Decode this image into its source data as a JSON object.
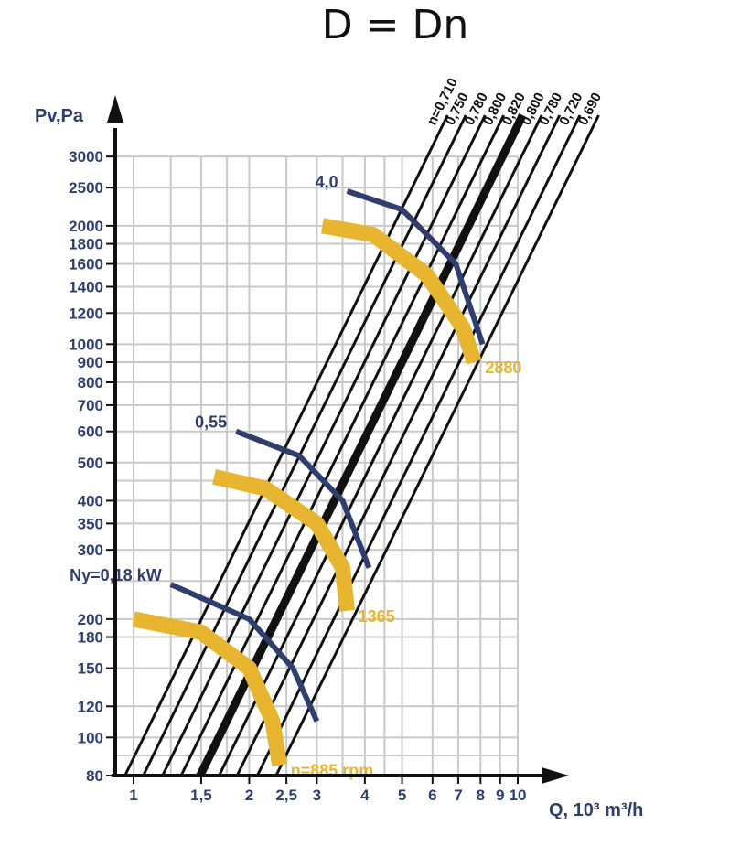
{
  "chart_data": {
    "type": "line",
    "title": "D = Dn",
    "xlabel": "Q, 10³ m³/h",
    "ylabel": "Pv,Pa",
    "x_scale": "log",
    "y_scale": "log",
    "xlim": [
      0.95,
      11
    ],
    "ylim": [
      80,
      4000
    ],
    "x_ticks": [
      {
        "v": 1,
        "label": "1"
      },
      {
        "v": 1.5,
        "label": "1,5"
      },
      {
        "v": 2,
        "label": "2"
      },
      {
        "v": 2.5,
        "label": "2,5"
      },
      {
        "v": 3,
        "label": "3"
      },
      {
        "v": 4,
        "label": "4"
      },
      {
        "v": 5,
        "label": "5"
      },
      {
        "v": 6,
        "label": "6"
      },
      {
        "v": 7,
        "label": "7"
      },
      {
        "v": 8,
        "label": "8"
      },
      {
        "v": 9,
        "label": "9"
      },
      {
        "v": 10,
        "label": "10"
      }
    ],
    "y_ticks": [
      {
        "v": 80,
        "label": "80"
      },
      {
        "v": 100,
        "label": "100"
      },
      {
        "v": 120,
        "label": "120"
      },
      {
        "v": 150,
        "label": "150"
      },
      {
        "v": 180,
        "label": "180"
      },
      {
        "v": 200,
        "label": "200"
      },
      {
        "v": 300,
        "label": "300"
      },
      {
        "v": 350,
        "label": "350"
      },
      {
        "v": 400,
        "label": "400"
      },
      {
        "v": 500,
        "label": "500"
      },
      {
        "v": 600,
        "label": "600"
      },
      {
        "v": 700,
        "label": "700"
      },
      {
        "v": 800,
        "label": "800"
      },
      {
        "v": 900,
        "label": "900"
      },
      {
        "v": 1000,
        "label": "1000"
      },
      {
        "v": 1200,
        "label": "1200"
      },
      {
        "v": 1400,
        "label": "1400"
      },
      {
        "v": 1600,
        "label": "1600"
      },
      {
        "v": 1800,
        "label": "1800"
      },
      {
        "v": 2000,
        "label": "2000"
      },
      {
        "v": 2500,
        "label": "2500"
      },
      {
        "v": 3000,
        "label": "3000"
      }
    ],
    "x_grid": [
      1,
      1.25,
      1.5,
      1.75,
      2,
      2.5,
      3,
      3.5,
      4,
      4.5,
      5,
      6,
      7,
      8,
      9,
      10
    ],
    "y_grid": [
      80,
      90,
      100,
      120,
      150,
      180,
      200,
      250,
      300,
      350,
      400,
      450,
      500,
      600,
      700,
      800,
      900,
      1000,
      1200,
      1400,
      1600,
      1800,
      2000,
      2500,
      3000
    ],
    "grid": true,
    "efficiency_lines": [
      {
        "label": "n=0,710",
        "pv80_q": 0.95,
        "bold": false
      },
      {
        "label": "0,750",
        "pv80_q": 1.06,
        "bold": false
      },
      {
        "label": "0,780",
        "pv80_q": 1.19,
        "bold": false
      },
      {
        "label": "0,800",
        "pv80_q": 1.33,
        "bold": false
      },
      {
        "label": "0,820",
        "pv80_q": 1.49,
        "bold": true
      },
      {
        "label": "0,800",
        "pv80_q": 1.67,
        "bold": false
      },
      {
        "label": "0,780",
        "pv80_q": 1.86,
        "bold": false
      },
      {
        "label": "0,720",
        "pv80_q": 2.1,
        "bold": false
      },
      {
        "label": "0,690",
        "pv80_q": 2.35,
        "bold": false
      }
    ],
    "speed_curves": [
      {
        "label": "n=885 rpm",
        "points": [
          [
            1,
            200
          ],
          [
            1.5,
            185
          ],
          [
            2,
            150
          ],
          [
            2.3,
            110
          ],
          [
            2.4,
            85
          ]
        ]
      },
      {
        "label": "1365",
        "points": [
          [
            1.62,
            460
          ],
          [
            2.2,
            430
          ],
          [
            3,
            350
          ],
          [
            3.5,
            270
          ],
          [
            3.6,
            210
          ]
        ]
      },
      {
        "label": "2880",
        "points": [
          [
            3.1,
            2000
          ],
          [
            4.2,
            1900
          ],
          [
            5.8,
            1500
          ],
          [
            7.2,
            1100
          ],
          [
            7.7,
            900
          ]
        ]
      }
    ],
    "power_curves": [
      {
        "label": "Ny=0,18 kW",
        "points": [
          [
            1.25,
            245
          ],
          [
            2,
            200
          ],
          [
            2.6,
            150
          ],
          [
            3,
            110
          ]
        ]
      },
      {
        "label": "0,55",
        "points": [
          [
            1.85,
            600
          ],
          [
            2.7,
            520
          ],
          [
            3.5,
            400
          ],
          [
            4.1,
            270
          ]
        ]
      },
      {
        "label": "4,0",
        "points": [
          [
            3.6,
            2450
          ],
          [
            5,
            2200
          ],
          [
            6.9,
            1600
          ],
          [
            8.1,
            1000
          ]
        ]
      }
    ],
    "colors": {
      "speed": "#e8b530",
      "power": "#2e3f6e",
      "eff_line": "#111111",
      "grid": "#c9c9c9",
      "text": "#2e3f6e"
    }
  }
}
